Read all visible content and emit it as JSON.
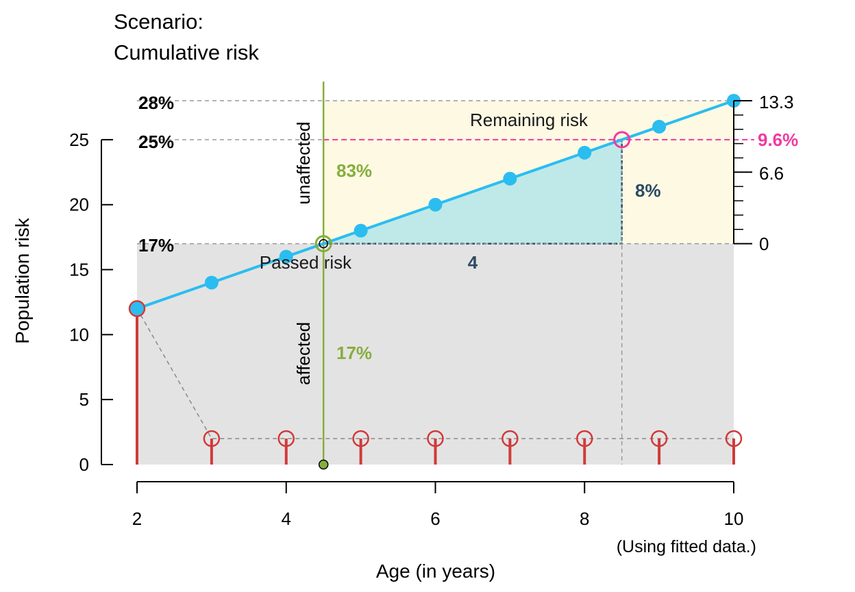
{
  "chart_data": {
    "type": "line",
    "title_line1": "Scenario:",
    "title_line2": "Cumulative risk",
    "xlabel": "Age (in years)",
    "ylabel": "Population risk",
    "note": "(Using fitted data.)",
    "xlim": [
      2,
      10
    ],
    "ylim": [
      0,
      28
    ],
    "x_ticks": [
      "2",
      "4",
      "6",
      "8",
      "10"
    ],
    "y_ticks": [
      "0",
      "5",
      "10",
      "15",
      "20",
      "25"
    ],
    "series": [
      {
        "x": [
          2,
          3,
          4,
          5,
          6,
          7,
          8,
          9,
          10
        ],
        "values": [
          12,
          14,
          16,
          18,
          20,
          22,
          24,
          26,
          28
        ]
      }
    ],
    "incidence": {
      "x": [
        2,
        3,
        4,
        5,
        6,
        7,
        8,
        9,
        10
      ],
      "values": [
        12,
        2,
        2,
        2,
        2,
        2,
        2,
        2,
        2
      ]
    },
    "current_age": 4.5,
    "current_risk": 17,
    "target_age": 8.5,
    "target_risk": 25,
    "max_risk": 28,
    "labels": {
      "pct_28": "28%",
      "pct_25": "25%",
      "pct_17": "17%",
      "remaining": "Remaining risk",
      "passed": "Passed risk",
      "unaffected": "unaffected",
      "affected": "affected",
      "unaffected_pct": "83%",
      "affected_pct": "17%",
      "delta_risk": "8%",
      "delta_years": "4"
    },
    "right_axis": {
      "ticks": [
        "0",
        "6.6",
        "13.3"
      ],
      "highlight": "9.6%"
    },
    "colors": {
      "line": "#2bbdf0",
      "points": "#2bbdf0",
      "incidence": "#d03a3a",
      "passed_fill": "#e4e3e3",
      "remaining_fill": "#fdf9e3",
      "triangle_fill": "#bfe9e8",
      "triangle_stroke": "#2e4a66",
      "current_age_line": "#86ad3e",
      "highlight": "#f03aa0",
      "dark_label": "#2e4a66",
      "green_label": "#86ad3e"
    }
  }
}
